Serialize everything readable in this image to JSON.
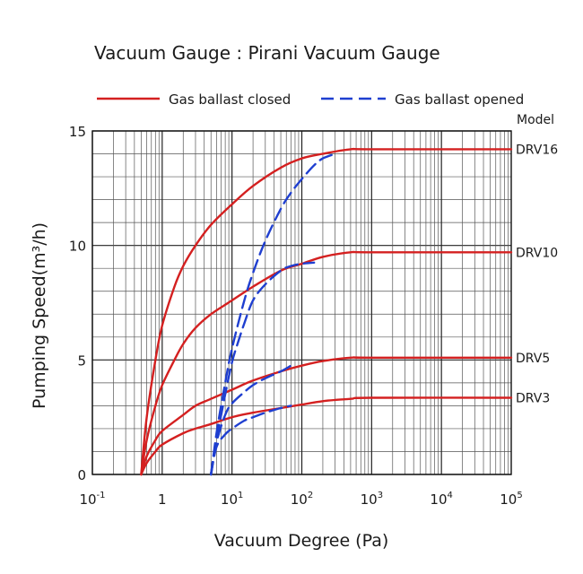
{
  "chart_data": {
    "type": "line",
    "title": "Vacuum Gauge : Pirani Vacuum Gauge",
    "xlabel": "Vacuum Degree (Pa)",
    "ylabel": "Pumping Speed(m³/h)",
    "xscale": "log",
    "xlim": [
      0.1,
      100000
    ],
    "ylim": [
      0,
      15
    ],
    "x_ticks": [
      {
        "value": 0.1,
        "base": "10",
        "exp": "-1"
      },
      {
        "value": 1,
        "base": "1",
        "exp": ""
      },
      {
        "value": 10,
        "base": "10",
        "exp": "1"
      },
      {
        "value": 100,
        "base": "10",
        "exp": "2"
      },
      {
        "value": 1000,
        "base": "10",
        "exp": "3"
      },
      {
        "value": 10000,
        "base": "10",
        "exp": "4"
      },
      {
        "value": 100000,
        "base": "10",
        "exp": "5"
      }
    ],
    "y_ticks": [
      {
        "value": 0,
        "label": "0"
      },
      {
        "value": 5,
        "label": "5"
      },
      {
        "value": 10,
        "label": "10"
      },
      {
        "value": 15,
        "label": "15"
      }
    ],
    "y_minor_step": 1,
    "grid": true,
    "legend_position": "top",
    "legend": [
      {
        "name": "Gas ballast closed",
        "style": "solid",
        "color": "#d42020"
      },
      {
        "name": "Gas ballast opened",
        "style": "dashed",
        "color": "#1f3fd0"
      }
    ],
    "model_header": "Model",
    "series": [
      {
        "name": "Gas ballast closed",
        "model": "DRV16",
        "style": "solid",
        "color": "#d42020",
        "x": [
          0.5,
          0.6,
          0.8,
          1,
          1.5,
          2,
          3,
          5,
          10,
          20,
          50,
          100,
          200,
          500,
          1000,
          100000
        ],
        "y": [
          0,
          2.5,
          5,
          6.5,
          8.2,
          9.1,
          10,
          10.9,
          11.8,
          12.6,
          13.4,
          13.8,
          14.0,
          14.2,
          14.2,
          14.2
        ]
      },
      {
        "name": "Gas ballast closed",
        "model": "DRV10",
        "style": "solid",
        "color": "#d42020",
        "x": [
          0.5,
          0.6,
          0.8,
          1,
          1.5,
          2,
          3,
          5,
          10,
          20,
          50,
          100,
          200,
          500,
          1000,
          100000
        ],
        "y": [
          0,
          1.5,
          3,
          3.9,
          5,
          5.7,
          6.4,
          7,
          7.6,
          8.2,
          8.9,
          9.2,
          9.5,
          9.7,
          9.7,
          9.7
        ]
      },
      {
        "name": "Gas ballast closed",
        "model": "DRV5",
        "style": "solid",
        "color": "#d42020",
        "x": [
          0.5,
          0.6,
          0.8,
          1,
          2,
          3,
          5,
          10,
          20,
          50,
          100,
          200,
          500,
          1000,
          100000
        ],
        "y": [
          0,
          0.8,
          1.5,
          1.9,
          2.6,
          3,
          3.3,
          3.7,
          4.1,
          4.5,
          4.75,
          4.95,
          5.1,
          5.1,
          5.1
        ]
      },
      {
        "name": "Gas ballast closed",
        "model": "DRV3",
        "style": "solid",
        "color": "#d42020",
        "x": [
          0.5,
          0.6,
          0.8,
          1,
          2,
          3,
          5,
          10,
          20,
          50,
          100,
          200,
          500,
          1000,
          100000
        ],
        "y": [
          0,
          0.5,
          1.0,
          1.3,
          1.8,
          2.0,
          2.2,
          2.5,
          2.7,
          2.9,
          3.05,
          3.2,
          3.3,
          3.35,
          3.35
        ]
      },
      {
        "name": "Gas ballast opened",
        "model": "DRV16",
        "style": "dashed",
        "color": "#1f3fd0",
        "x": [
          5,
          6,
          8,
          10,
          15,
          20,
          30,
          50,
          70,
          100,
          150,
          200,
          300
        ],
        "y": [
          0,
          1.8,
          4.0,
          5.5,
          7.6,
          8.8,
          10.2,
          11.6,
          12.3,
          12.9,
          13.5,
          13.8,
          14.0
        ]
      },
      {
        "name": "Gas ballast opened",
        "model": "DRV10",
        "style": "dashed",
        "color": "#1f3fd0",
        "x": [
          5,
          6,
          8,
          10,
          12,
          15,
          20,
          30,
          50,
          70,
          100,
          150
        ],
        "y": [
          0,
          1.5,
          3.5,
          4.9,
          5.7,
          6.6,
          7.6,
          8.3,
          8.9,
          9.1,
          9.2,
          9.25
        ]
      },
      {
        "name": "Gas ballast opened",
        "model": "DRV5",
        "style": "dashed",
        "color": "#1f3fd0",
        "x": [
          5,
          6,
          8,
          10,
          15,
          20,
          30,
          50,
          70
        ],
        "y": [
          0,
          1.4,
          2.6,
          3.1,
          3.6,
          3.9,
          4.2,
          4.5,
          4.75
        ]
      },
      {
        "name": "Gas ballast opened",
        "model": "DRV3",
        "style": "dashed",
        "color": "#1f3fd0",
        "x": [
          5,
          6,
          8,
          10,
          15,
          20,
          30,
          50,
          70
        ],
        "y": [
          0,
          1.2,
          1.75,
          2.0,
          2.35,
          2.5,
          2.7,
          2.9,
          3.0
        ]
      }
    ]
  }
}
